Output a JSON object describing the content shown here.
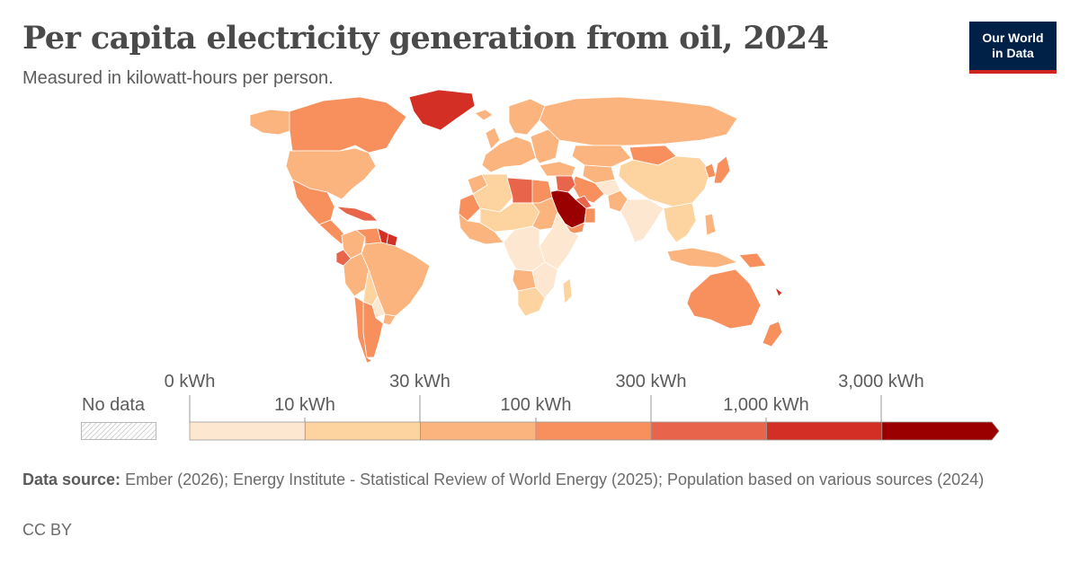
{
  "header": {
    "title": "Per capita electricity generation from oil, 2024",
    "subtitle": "Measured in kilowatt-hours per person."
  },
  "logo": {
    "line1": "Our World",
    "line2": "in Data",
    "bg": "#002147",
    "accent": "#ce261e"
  },
  "legend": {
    "no_data_label": "No data",
    "ticks_top": [
      "0 kWh",
      "30 kWh",
      "300 kWh",
      "3,000 kWh"
    ],
    "ticks_bottom": [
      "10 kWh",
      "100 kWh",
      "1,000 kWh"
    ],
    "bins": [
      "#fde7d1",
      "#fdd39f",
      "#fcb47e",
      "#f7905c",
      "#e8644b",
      "#d32f25",
      "#9b0000"
    ]
  },
  "map_data": {
    "type": "choropleth",
    "variable": "Per capita electricity generation from oil, 2024",
    "unit": "kWh",
    "scale": "log",
    "bin_edges": [
      0,
      10,
      30,
      100,
      300,
      1000,
      3000
    ],
    "regions": [
      {
        "region": "Greenland",
        "bin": 5
      },
      {
        "region": "Canada",
        "bin": 3
      },
      {
        "region": "United States",
        "bin": 2
      },
      {
        "region": "Alaska",
        "bin": 2
      },
      {
        "region": "Mexico",
        "bin": 3
      },
      {
        "region": "Central America",
        "bin": 3
      },
      {
        "region": "Caribbean",
        "bin": 4
      },
      {
        "region": "Venezuela",
        "bin": 3
      },
      {
        "region": "Guyana",
        "bin": 5
      },
      {
        "region": "Suriname",
        "bin": 5
      },
      {
        "region": "Colombia",
        "bin": 2
      },
      {
        "region": "Ecuador",
        "bin": 4
      },
      {
        "region": "Peru",
        "bin": 2
      },
      {
        "region": "Brazil",
        "bin": 2
      },
      {
        "region": "Bolivia",
        "bin": 1
      },
      {
        "region": "Paraguay",
        "bin": 0
      },
      {
        "region": "Chile",
        "bin": 3
      },
      {
        "region": "Argentina",
        "bin": 3
      },
      {
        "region": "Uruguay",
        "bin": 2
      },
      {
        "region": "Iceland",
        "bin": 2
      },
      {
        "region": "United Kingdom",
        "bin": 2
      },
      {
        "region": "Western Europe",
        "bin": 2
      },
      {
        "region": "Scandinavia",
        "bin": 2
      },
      {
        "region": "Eastern Europe",
        "bin": 2
      },
      {
        "region": "Russia",
        "bin": 2
      },
      {
        "region": "Kazakhstan",
        "bin": 2
      },
      {
        "region": "Mongolia",
        "bin": 3
      },
      {
        "region": "China",
        "bin": 1
      },
      {
        "region": "Japan",
        "bin": 3
      },
      {
        "region": "Korea",
        "bin": 3
      },
      {
        "region": "Turkey",
        "bin": 2
      },
      {
        "region": "Libya",
        "bin": 4
      },
      {
        "region": "Egypt",
        "bin": 3
      },
      {
        "region": "Algeria",
        "bin": 1
      },
      {
        "region": "Morocco",
        "bin": 2
      },
      {
        "region": "Mauritania",
        "bin": 3
      },
      {
        "region": "West Africa",
        "bin": 2
      },
      {
        "region": "Sahel",
        "bin": 1
      },
      {
        "region": "Sudan",
        "bin": 2
      },
      {
        "region": "Saudi Arabia",
        "bin": 6
      },
      {
        "region": "Iraq",
        "bin": 4
      },
      {
        "region": "Iran",
        "bin": 3
      },
      {
        "region": "Yemen",
        "bin": 3
      },
      {
        "region": "Oman",
        "bin": 3
      },
      {
        "region": "Gulf States",
        "bin": 4
      },
      {
        "region": "Central Asia",
        "bin": 2
      },
      {
        "region": "Afghanistan",
        "bin": 0
      },
      {
        "region": "Pakistan",
        "bin": 2
      },
      {
        "region": "India",
        "bin": 0
      },
      {
        "region": "Southeast Asia",
        "bin": 1
      },
      {
        "region": "Indonesia",
        "bin": 2
      },
      {
        "region": "Philippines",
        "bin": 2
      },
      {
        "region": "Papua New Guinea",
        "bin": 3
      },
      {
        "region": "Central Africa",
        "bin": 0
      },
      {
        "region": "East Africa",
        "bin": 0
      },
      {
        "region": "Angola",
        "bin": 2
      },
      {
        "region": "Southern Africa",
        "bin": 0
      },
      {
        "region": "South Africa",
        "bin": 1
      },
      {
        "region": "Madagascar",
        "bin": 1
      },
      {
        "region": "Australia",
        "bin": 3
      },
      {
        "region": "New Zealand",
        "bin": 3
      },
      {
        "region": "New Caledonia",
        "bin": 5
      }
    ]
  },
  "footer": {
    "source_label": "Data source:",
    "source_text": "Ember (2026); Energy Institute - Statistical Review of World Energy (2025); Population based on various sources (2024)",
    "license": "CC BY"
  }
}
